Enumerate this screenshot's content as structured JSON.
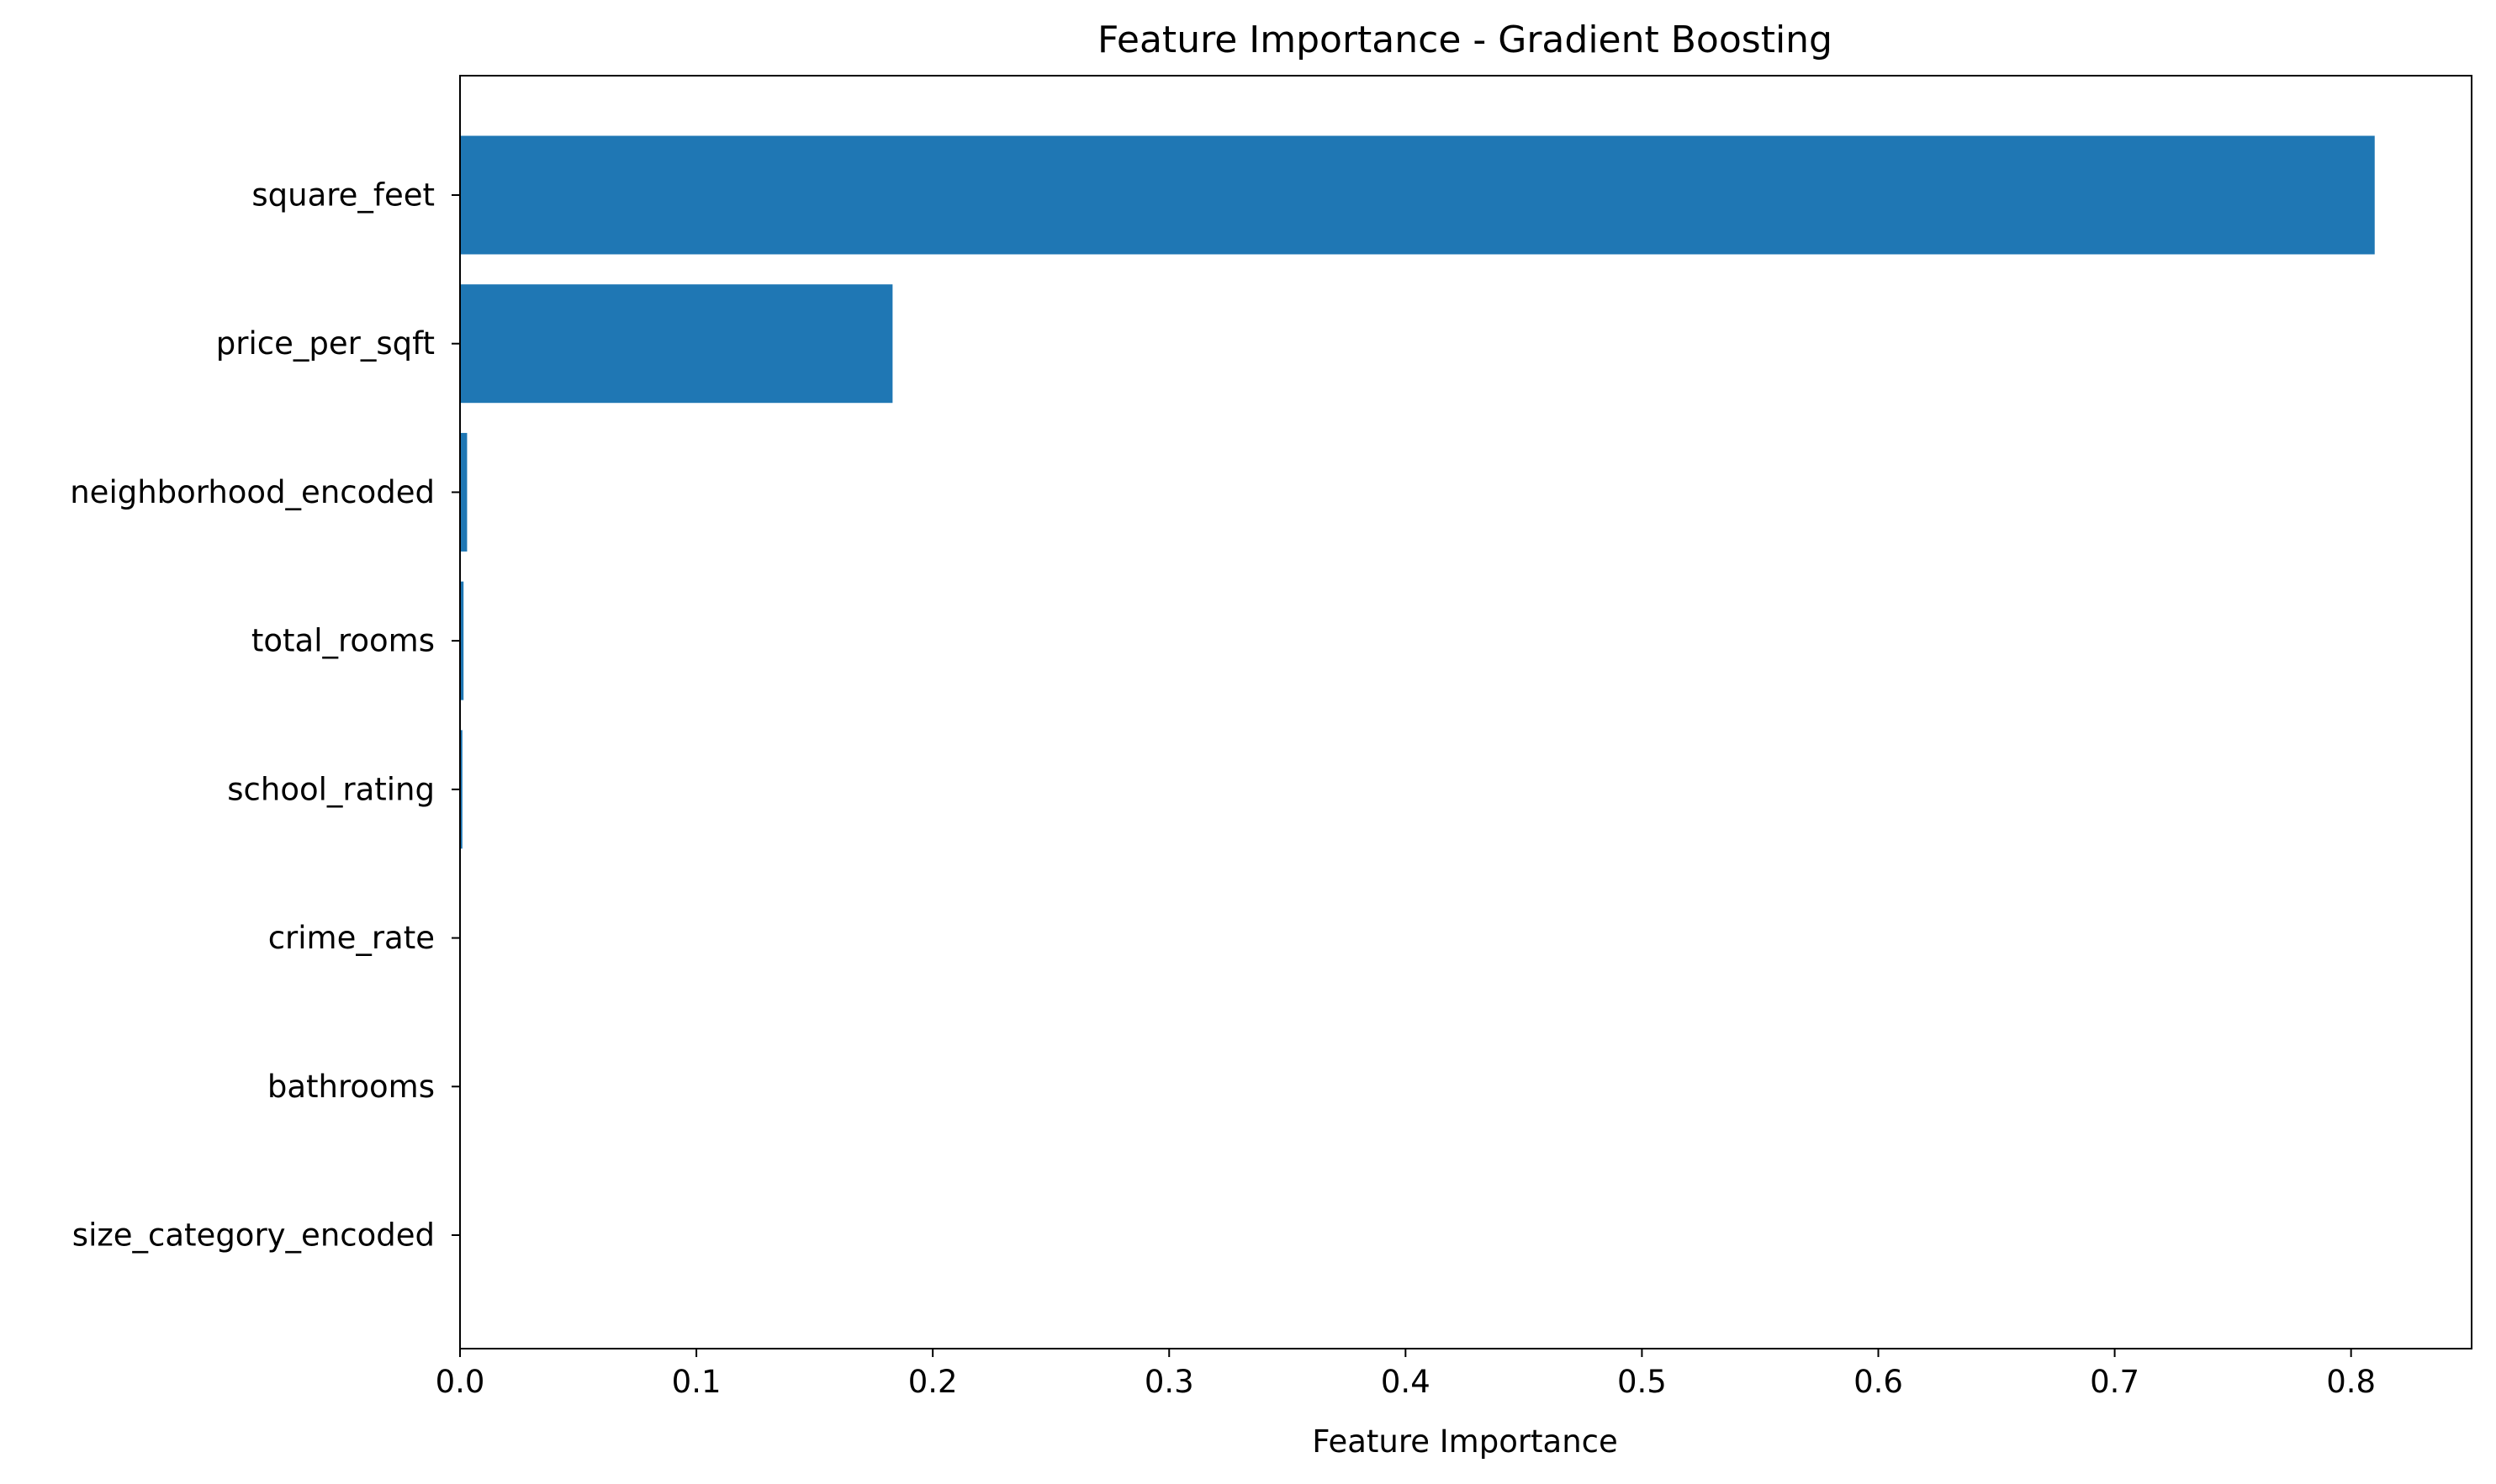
{
  "chart_data": {
    "type": "bar",
    "orientation": "horizontal",
    "title": "Feature Importance - Gradient Boosting",
    "xlabel": "Feature Importance",
    "ylabel": "",
    "categories": [
      "square_feet",
      "price_per_sqft",
      "neighborhood_encoded",
      "total_rooms",
      "school_rating",
      "crime_rate",
      "bathrooms",
      "size_category_encoded"
    ],
    "values": [
      0.81,
      0.183,
      0.003,
      0.0015,
      0.001,
      0.0003,
      0.0002,
      0.0001
    ],
    "xlim": [
      0.0,
      0.851
    ],
    "xticks": [
      0.0,
      0.1,
      0.2,
      0.3,
      0.4,
      0.5,
      0.6,
      0.7,
      0.8
    ],
    "xtick_labels": [
      "0.0",
      "0.1",
      "0.2",
      "0.3",
      "0.4",
      "0.5",
      "0.6",
      "0.7",
      "0.8"
    ],
    "bar_color": "#1f77b4",
    "grid": false,
    "legend": "none"
  }
}
